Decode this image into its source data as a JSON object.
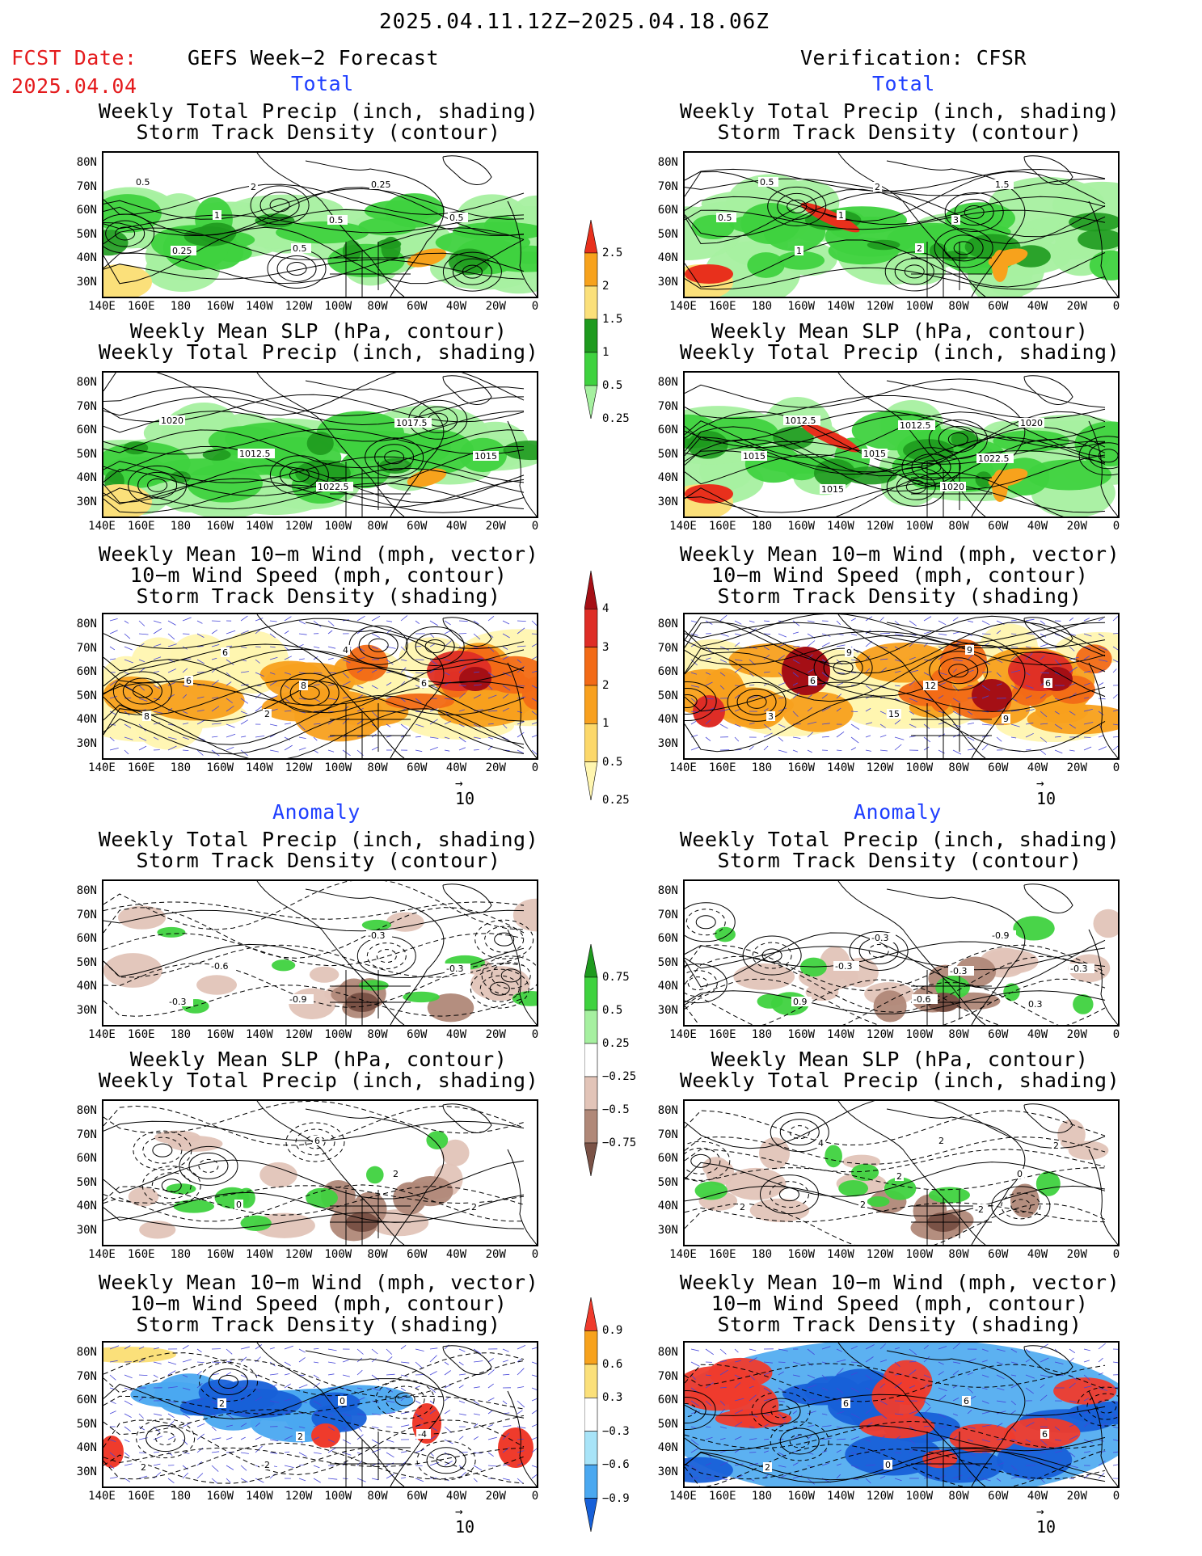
{
  "header": {
    "date_range": "2025.04.11.12Z−2025.04.18.06Z",
    "fcst_label": "FCST Date:",
    "fcst_date": "2025.04.04",
    "left_title": "GEFS Week−2 Forecast",
    "right_title": "Verification: CFSR",
    "total_label": "Total",
    "anomaly_label": "Anomaly"
  },
  "panel_titles": {
    "precip_storm": [
      "Weekly Total Precip (inch, shading)",
      "Storm Track Density (contour)"
    ],
    "slp_precip": [
      "Weekly Mean SLP (hPa, contour)",
      "Weekly Total Precip (inch, shading)"
    ],
    "wind": [
      "Weekly Mean 10−m Wind (mph, vector)",
      "10−m Wind Speed (mph, contour)",
      "Storm Track Density (shading)"
    ]
  },
  "axes": {
    "lat_labels": [
      "80N",
      "70N",
      "60N",
      "50N",
      "40N",
      "30N"
    ],
    "lon_labels": [
      "140E",
      "160E",
      "180",
      "160W",
      "140W",
      "120W",
      "100W",
      "80W",
      "60W",
      "40W",
      "20W",
      "0"
    ]
  },
  "vector_ref": "10",
  "colorbars": {
    "precip_total": {
      "labels": [
        "2.5",
        "2",
        "1.5",
        "1",
        "0.5",
        "0.25"
      ],
      "colors": [
        "#e8301c",
        "#f7a21c",
        "#fbe07a",
        "#1e9a1e",
        "#3fd23f",
        "#a6f0a0"
      ]
    },
    "storm_total": {
      "labels": [
        "4",
        "3",
        "2",
        "1",
        "0.5",
        "0.25"
      ],
      "colors": [
        "#a50f15",
        "#de2d26",
        "#f26a16",
        "#f8a01e",
        "#fcd86a",
        "#fff6b0"
      ]
    },
    "precip_anom": {
      "labels": [
        "0.75",
        "0.5",
        "0.25",
        "−0.25",
        "−0.5",
        "−0.75"
      ],
      "colors": [
        "#1e9a1e",
        "#3fd23f",
        "#a6f0a0",
        "#ffffff",
        "#e2c4b8",
        "#b08878",
        "#7a5246"
      ]
    },
    "storm_anom": {
      "labels": [
        "0.9",
        "0.6",
        "0.3",
        "−0.3",
        "−0.6",
        "−0.9"
      ],
      "colors": [
        "#ef3b2c",
        "#f7a21c",
        "#fbe07a",
        "#ffffff",
        "#a8e4f8",
        "#4aa8f0",
        "#1760d8"
      ]
    }
  },
  "map_labels": {
    "gefs_total_precip": [
      "0.5",
      "1",
      "0.5",
      "0.25",
      "0.5",
      "0.25",
      "2",
      "0.5"
    ],
    "cfsr_total_precip": [
      "0.5",
      "1",
      "2",
      "1.5",
      "0.5",
      "1",
      "2",
      "3"
    ],
    "gefs_total_slp": [
      "1020",
      "1012.5",
      "1022.5",
      "1017.5",
      "1015"
    ],
    "cfsr_total_slp": [
      "1012.5",
      "1015",
      "1020",
      "1020",
      "1015",
      "1015",
      "1012.5",
      "1022.5"
    ],
    "gefs_total_wind": [
      "6",
      "2",
      "4",
      "6",
      "8",
      "6",
      "8"
    ],
    "cfsr_total_wind": [
      "6",
      "15",
      "9",
      "6",
      "3",
      "9",
      "12",
      "9"
    ],
    "gefs_anom_precip": [
      "-0.6",
      "-0.9",
      "-0.3",
      "-0.3",
      "-0.3"
    ],
    "cfsr_anom_precip": [
      "-0.3",
      "-0.6",
      "-0.9",
      "-0.3",
      "0.9",
      "-0.3",
      "-0.3",
      "0.3"
    ],
    "gefs_anom_slp": [
      "0",
      "6",
      "2",
      "2"
    ],
    "cfsr_anom_slp": [
      "2",
      "2",
      "0",
      "2",
      "4",
      "2",
      "-2",
      "2"
    ],
    "gefs_anom_wind": [
      "-2",
      "0",
      "-4",
      "2",
      "2",
      "2"
    ],
    "cfsr_anom_wind": [
      "0",
      "6",
      "6",
      "2",
      "6"
    ]
  }
}
